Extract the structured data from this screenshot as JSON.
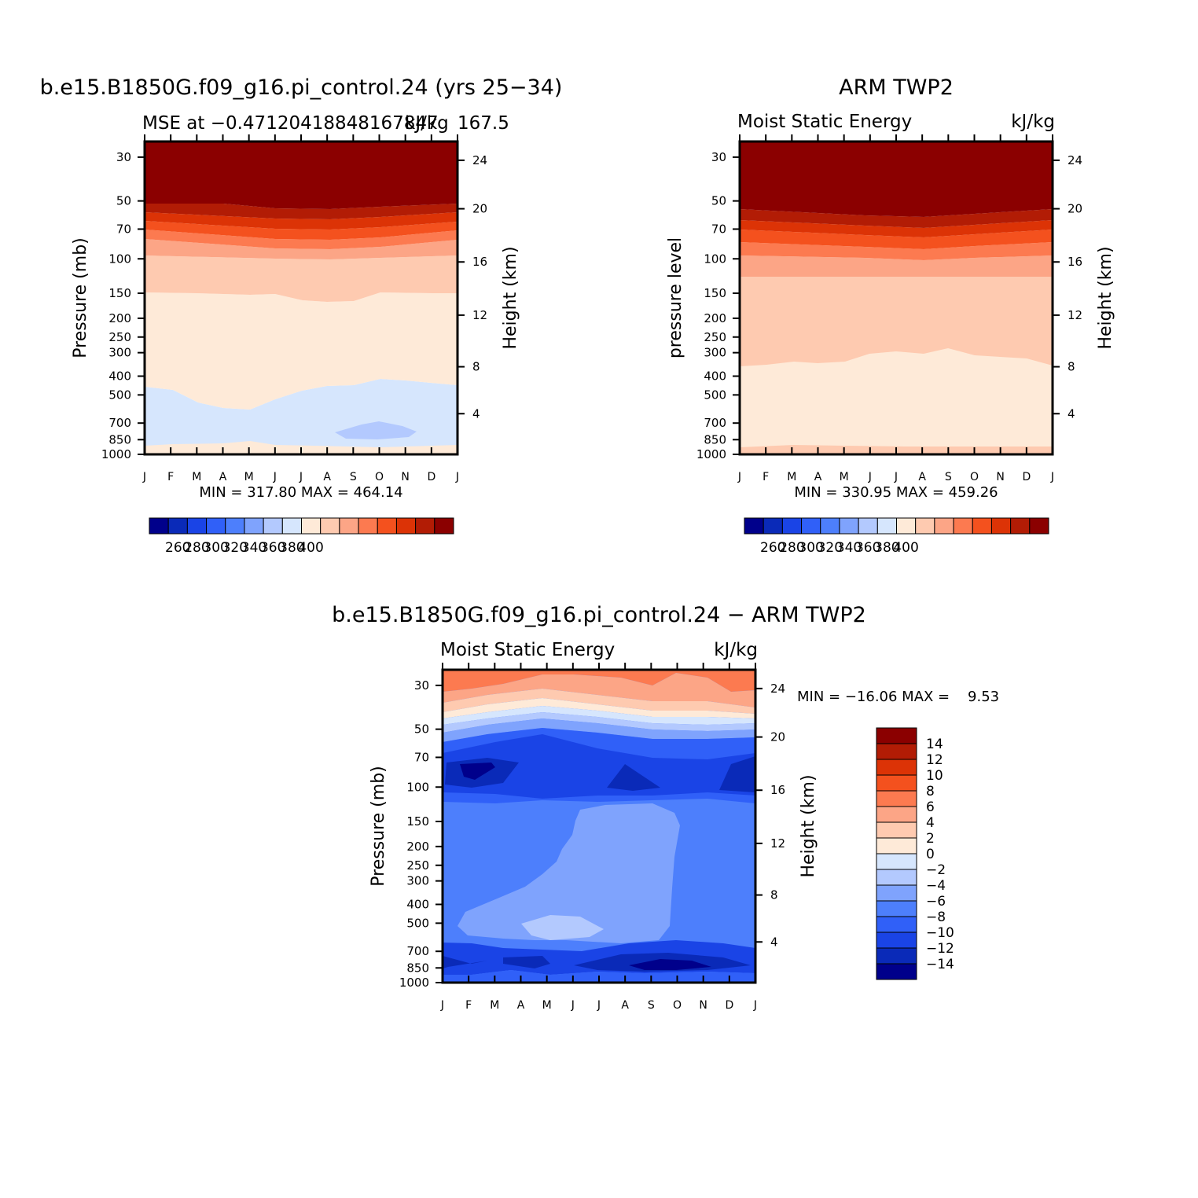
{
  "chart_data": [
    {
      "type": "heatmap",
      "title": "b.e15.B1850G.f09_g16.pi_control.24 (yrs 25−34)",
      "subtitle_left": "MSE at −0.47120418848167847",
      "subtitle_right": "kJ/kg",
      "subtitle_lon": "167.5",
      "ylabel": "Pressure (mb)",
      "ylabel_right": "Height (km)",
      "x_ticks": [
        "J",
        "F",
        "M",
        "A",
        "M",
        "J",
        "J",
        "A",
        "S",
        "O",
        "N",
        "D",
        "J"
      ],
      "y_ticks": [
        "30",
        "50",
        "70",
        "100",
        "150",
        "200",
        "250",
        "300",
        "400",
        "500",
        "700",
        "850",
        "1000"
      ],
      "y_ticks_right": [
        "24",
        "20",
        "16",
        "12",
        "8",
        "4"
      ],
      "minmax": "MIN = 317.80 MAX = 464.14",
      "colorbar": {
        "labels": [
          "260",
          "280",
          "300",
          "320",
          "340",
          "360",
          "380",
          "400"
        ],
        "colors": [
          "#00008b",
          "#0a2ab8",
          "#1a44e6",
          "#3060f8",
          "#4d7ffc",
          "#7fa3fd",
          "#b3c9fe",
          "#d6e6fd",
          "#feead8",
          "#fecab0",
          "#fca586",
          "#fc7a50",
          "#f4511e",
          "#dc3306",
          "#b21c05",
          "#8b0000"
        ]
      },
      "levels_kJkg": [
        {
          "range": ">400",
          "color": "#8b0000",
          "p_top": 30,
          "p_bottom": 50
        },
        {
          "range": "390-400",
          "color": "#b21c05",
          "p_top": 50,
          "p_bottom": 57
        },
        {
          "range": "380-390",
          "color": "#dc3306",
          "p_top": 57,
          "p_bottom": 66
        },
        {
          "range": "370-380",
          "color": "#f4511e",
          "p_top": 66,
          "p_bottom": 74
        },
        {
          "range": "360-370",
          "color": "#fc7a50",
          "p_top": 74,
          "p_bottom": 84
        },
        {
          "range": "350-360",
          "color": "#fca586",
          "p_top": 84,
          "p_bottom": 98
        },
        {
          "range": "340-350",
          "color": "#fecab0",
          "p_top": 98,
          "p_bottom": 150
        },
        {
          "range": "330-340",
          "color": "#feead8",
          "p_top": 150,
          "p_bottom": 450
        },
        {
          "range": "320-330",
          "color": "#d6e6fd",
          "p_top": 450,
          "p_bottom": 940
        },
        {
          "range": "310-320",
          "color": "#b3c9fe",
          "note": "small region near 750 mb, Sep-Nov"
        },
        {
          "range": "330-340",
          "color": "#feead8",
          "p_top": 940,
          "p_bottom": 1000
        }
      ]
    },
    {
      "type": "heatmap",
      "title": "ARM TWP2",
      "subtitle_left": "Moist Static Energy",
      "subtitle_right": "kJ/kg",
      "ylabel": "pressure level",
      "ylabel_right": "Height (km)",
      "x_ticks": [
        "J",
        "F",
        "M",
        "A",
        "M",
        "J",
        "J",
        "A",
        "S",
        "O",
        "N",
        "D",
        "J"
      ],
      "y_ticks": [
        "30",
        "50",
        "70",
        "100",
        "150",
        "200",
        "250",
        "300",
        "400",
        "500",
        "700",
        "850",
        "1000"
      ],
      "y_ticks_right": [
        "24",
        "20",
        "16",
        "12",
        "8",
        "4"
      ],
      "minmax": "MIN = 330.95 MAX = 459.26",
      "colorbar": {
        "labels": [
          "260",
          "280",
          "300",
          "320",
          "340",
          "360",
          "380",
          "400"
        ],
        "colors": [
          "#00008b",
          "#0a2ab8",
          "#1a44e6",
          "#3060f8",
          "#4d7ffc",
          "#7fa3fd",
          "#b3c9fe",
          "#d6e6fd",
          "#feead8",
          "#fecab0",
          "#fca586",
          "#fc7a50",
          "#f4511e",
          "#dc3306",
          "#b21c05",
          "#8b0000"
        ]
      },
      "levels_kJkg": [
        {
          "range": ">400",
          "color": "#8b0000",
          "p_top": 30,
          "p_bottom": 56
        },
        {
          "range": "390-400",
          "color": "#b21c05",
          "p_top": 56,
          "p_bottom": 64
        },
        {
          "range": "380-390",
          "color": "#dc3306",
          "p_top": 64,
          "p_bottom": 73
        },
        {
          "range": "370-380",
          "color": "#f4511e",
          "p_top": 73,
          "p_bottom": 86
        },
        {
          "range": "360-370",
          "color": "#fc7a50",
          "p_top": 86,
          "p_bottom": 105
        },
        {
          "range": "350-360",
          "color": "#fca586",
          "p_top": 105,
          "p_bottom": 140
        },
        {
          "range": "340-350",
          "color": "#fecab0",
          "p_top": 140,
          "p_bottom": 320
        },
        {
          "range": "330-340",
          "color": "#feead8",
          "p_top": 320,
          "p_bottom": 1000
        }
      ]
    },
    {
      "type": "heatmap",
      "title": "b.e15.B1850G.f09_g16.pi_control.24 − ARM TWP2",
      "subtitle_left": "Moist Static Energy",
      "subtitle_right": "kJ/kg",
      "ylabel": "Pressure (mb)",
      "ylabel_right": "Height (km)",
      "x_ticks": [
        "J",
        "F",
        "M",
        "A",
        "M",
        "J",
        "J",
        "A",
        "S",
        "O",
        "N",
        "D",
        "J"
      ],
      "y_ticks": [
        "30",
        "50",
        "70",
        "100",
        "150",
        "200",
        "250",
        "300",
        "400",
        "500",
        "700",
        "850",
        "1000"
      ],
      "y_ticks_right": [
        "24",
        "20",
        "16",
        "12",
        "8",
        "4"
      ],
      "minmax": "MIN = −16.06 MAX =    9.53",
      "colorbar": {
        "labels": [
          "14",
          "12",
          "10",
          "8",
          "6",
          "4",
          "2",
          "0",
          "−2",
          "−4",
          "−6",
          "−8",
          "−10",
          "−12",
          "−14"
        ],
        "colors": [
          "#8b0000",
          "#b21c05",
          "#dc3306",
          "#f4511e",
          "#fc7a50",
          "#fca586",
          "#fecab0",
          "#feead8",
          "#d6e6fd",
          "#b3c9fe",
          "#7fa3fd",
          "#4d7ffc",
          "#3060f8",
          "#1a44e6",
          "#0a2ab8",
          "#00008b"
        ]
      },
      "regions": [
        {
          "range": "4 to 8",
          "color": "#fc7a50",
          "near_p": 30
        },
        {
          "range": "-6 to -4",
          "color": "#7fa3fd",
          "p_range": [
            170,
            560
          ]
        },
        {
          "range": "-4 to -2",
          "color": "#b3c9fe",
          "near_p": 560
        },
        {
          "range": "-12 to -10",
          "color": "#1a44e6",
          "near_p": 80
        },
        {
          "range": "-16 to -14",
          "color": "#00008b",
          "near_p": 850
        }
      ]
    }
  ]
}
